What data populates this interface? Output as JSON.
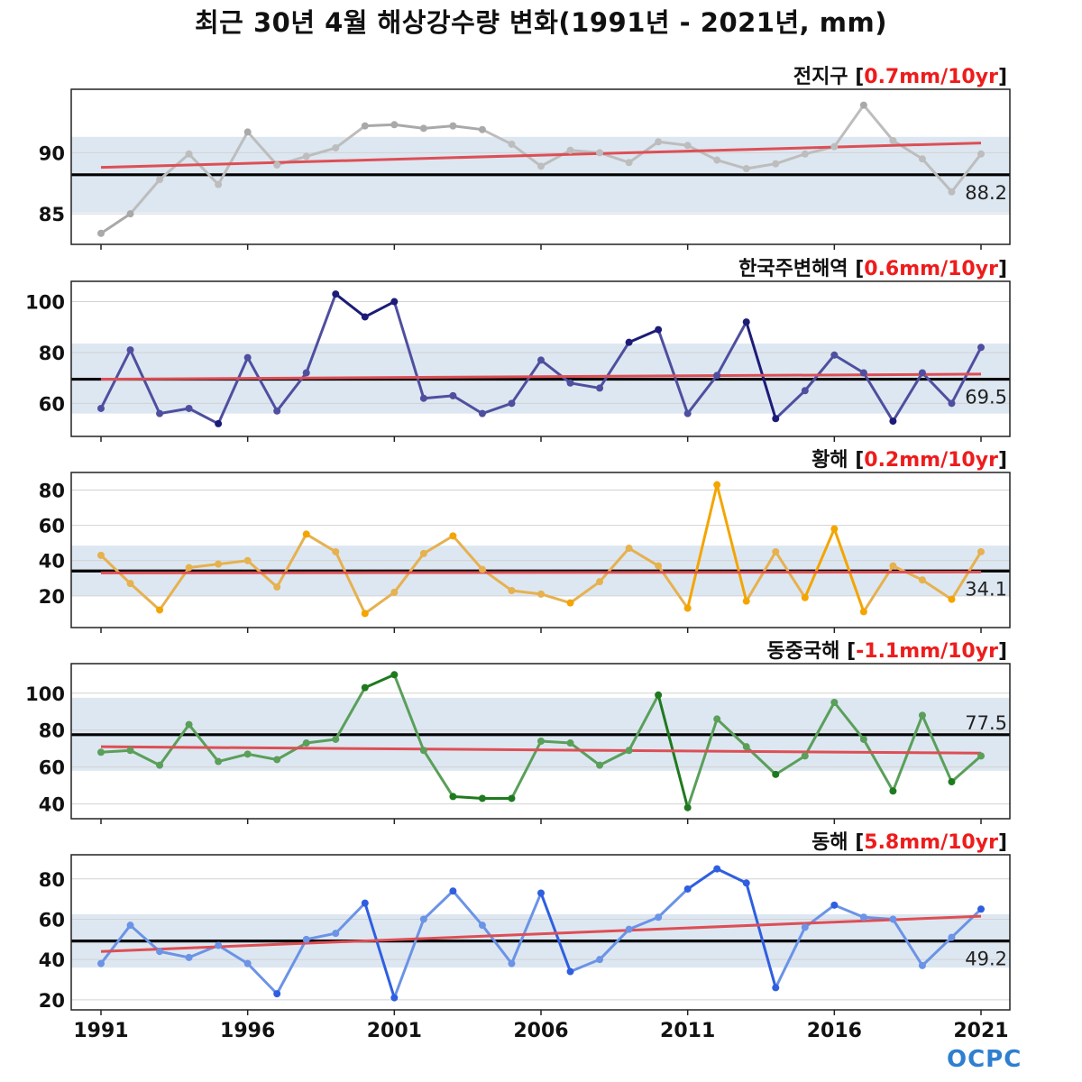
{
  "title": "최근 30년 4월 해상강수량 변화(1991년 - 2021년, mm)",
  "logo_text": "OCPC",
  "x_ticks": [
    1991,
    1996,
    2001,
    2006,
    2011,
    2016,
    2021
  ],
  "chart_data": [
    {
      "type": "line",
      "name": "전지구",
      "trend_label": "0.7mm/10yr",
      "x": [
        1991,
        1992,
        1993,
        1994,
        1995,
        1996,
        1997,
        1998,
        1999,
        2000,
        2001,
        2002,
        2003,
        2004,
        2005,
        2006,
        2007,
        2008,
        2009,
        2010,
        2011,
        2012,
        2013,
        2014,
        2015,
        2016,
        2017,
        2018,
        2019,
        2020,
        2021
      ],
      "values": [
        83.4,
        85.0,
        87.8,
        89.9,
        87.4,
        91.7,
        89.0,
        89.7,
        90.4,
        92.2,
        92.3,
        92.0,
        92.2,
        91.9,
        90.7,
        88.9,
        90.2,
        90.0,
        89.2,
        90.9,
        90.6,
        89.4,
        88.7,
        89.1,
        89.9,
        90.5,
        93.9,
        91.0,
        89.5,
        86.8,
        89.9
      ],
      "mean": 88.2,
      "mean_label": "88.2",
      "std_band": [
        85.1,
        91.3
      ],
      "trend": [
        88.8,
        90.8
      ],
      "ylim": [
        82.5,
        95.2
      ],
      "yticks": [
        85,
        90
      ],
      "color": "#bdbdbd",
      "dark_color": "#a9a9a9"
    },
    {
      "type": "line",
      "name": "한국주변해역",
      "trend_label": "0.6mm/10yr",
      "x": [
        1991,
        1992,
        1993,
        1994,
        1995,
        1996,
        1997,
        1998,
        1999,
        2000,
        2001,
        2002,
        2003,
        2004,
        2005,
        2006,
        2007,
        2008,
        2009,
        2010,
        2011,
        2012,
        2013,
        2014,
        2015,
        2016,
        2017,
        2018,
        2019,
        2020,
        2021
      ],
      "values": [
        58,
        81,
        56,
        58,
        52,
        78,
        57,
        72,
        103,
        94,
        100,
        62,
        63,
        56,
        60,
        77,
        68,
        66,
        84,
        89,
        56,
        71,
        92,
        54,
        65,
        79,
        72,
        53,
        72,
        60,
        82
      ],
      "mean": 69.5,
      "mean_label": "69.5",
      "std_band": [
        56,
        83.5
      ],
      "trend": [
        69.5,
        71.5
      ],
      "ylim": [
        47,
        108
      ],
      "yticks": [
        60,
        80,
        100
      ],
      "color": "#4f4f9f",
      "dark_color": "#1c1c78"
    },
    {
      "type": "line",
      "name": "황해",
      "trend_label": "0.2mm/10yr",
      "x": [
        1991,
        1992,
        1993,
        1994,
        1995,
        1996,
        1997,
        1998,
        1999,
        2000,
        2001,
        2002,
        2003,
        2004,
        2005,
        2006,
        2007,
        2008,
        2009,
        2010,
        2011,
        2012,
        2013,
        2014,
        2015,
        2016,
        2017,
        2018,
        2019,
        2020,
        2021
      ],
      "values": [
        43,
        27,
        12,
        36,
        38,
        40,
        25,
        55,
        45,
        10,
        22,
        44,
        54,
        35,
        23,
        21,
        16,
        28,
        47,
        37,
        13,
        83,
        17,
        45,
        19,
        58,
        11,
        37,
        29,
        18,
        45
      ],
      "mean": 34.1,
      "mean_label": "34.1",
      "std_band": [
        20,
        48.5
      ],
      "trend": [
        33.0,
        33.5
      ],
      "ylim": [
        2,
        90
      ],
      "yticks": [
        20,
        40,
        60,
        80
      ],
      "color": "#e6b14f",
      "dark_color": "#f4a500"
    },
    {
      "type": "line",
      "name": "동중국해",
      "trend_label": "-1.1mm/10yr",
      "x": [
        1991,
        1992,
        1993,
        1994,
        1995,
        1996,
        1997,
        1998,
        1999,
        2000,
        2001,
        2002,
        2003,
        2004,
        2005,
        2006,
        2007,
        2008,
        2009,
        2010,
        2011,
        2012,
        2013,
        2014,
        2015,
        2016,
        2017,
        2018,
        2019,
        2020,
        2021
      ],
      "values": [
        68,
        69,
        61,
        83,
        63,
        67,
        64,
        73,
        75,
        103,
        110,
        69,
        44,
        43,
        43,
        74,
        73,
        61,
        69,
        99,
        38,
        86,
        71,
        56,
        66,
        95,
        75,
        47,
        88,
        52,
        66
      ],
      "mean": 77.5,
      "mean_label": "77.5",
      "std_band": [
        58,
        97.5
      ],
      "trend": [
        71.0,
        67.5
      ],
      "ylim": [
        32,
        116
      ],
      "yticks": [
        40,
        60,
        80,
        100
      ],
      "color": "#5a9f5a",
      "dark_color": "#1f7a1f"
    },
    {
      "type": "line",
      "name": "동해",
      "trend_label": "5.8mm/10yr",
      "x": [
        1991,
        1992,
        1993,
        1994,
        1995,
        1996,
        1997,
        1998,
        1999,
        2000,
        2001,
        2002,
        2003,
        2004,
        2005,
        2006,
        2007,
        2008,
        2009,
        2010,
        2011,
        2012,
        2013,
        2014,
        2015,
        2016,
        2017,
        2018,
        2019,
        2020,
        2021
      ],
      "values": [
        38,
        57,
        44,
        41,
        47,
        38,
        23,
        50,
        53,
        68,
        21,
        60,
        74,
        57,
        38,
        73,
        34,
        40,
        55,
        61,
        75,
        85,
        78,
        26,
        56,
        67,
        61,
        60,
        37,
        51,
        65
      ],
      "mean": 49.2,
      "mean_label": "49.2",
      "std_band": [
        36,
        62.5
      ],
      "trend": [
        44.0,
        61.5
      ],
      "ylim": [
        15,
        92
      ],
      "yticks": [
        20,
        40,
        60,
        80
      ],
      "color": "#6b93e6",
      "dark_color": "#2f5fe0"
    }
  ]
}
